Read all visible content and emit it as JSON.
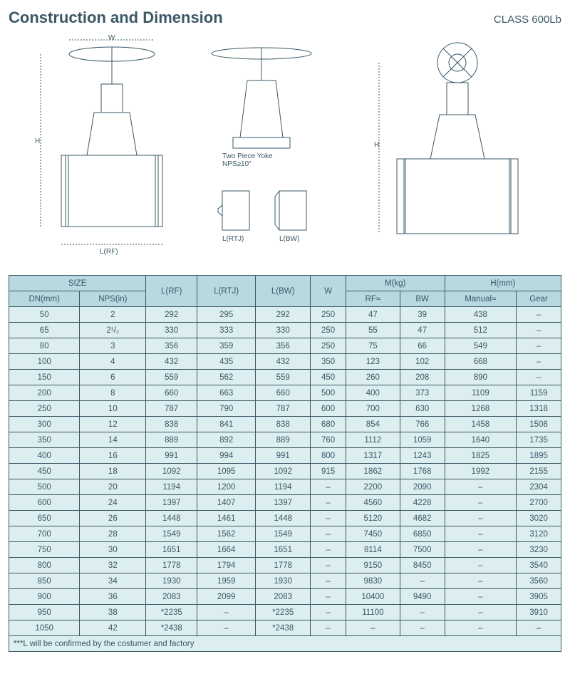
{
  "header": {
    "title": "Construction and Dimension",
    "class_label": "CLASS 600Lb"
  },
  "diagram": {
    "yoke_label": "Two Piece Yoke\nNPS≥10\"",
    "dim_W": "W",
    "dim_H": "H",
    "dim_LRF": "L(RF)",
    "dim_LRTJ": "L(RTJ)",
    "dim_LBW": "L(BW)"
  },
  "table": {
    "header_bg": "#b9d9e0",
    "row_bg": "#dceef0",
    "border_color": "#3a5866",
    "text_color": "#3a5866",
    "groups": {
      "size": "SIZE",
      "mkg": "M(kg)",
      "hmm": "H(mm)"
    },
    "columns": {
      "dn": "DN(mm)",
      "nps": "NPS(in)",
      "lrf": "L(RF)",
      "lrtj": "L(RTJ)",
      "lbw": "L(BW)",
      "w": "W",
      "rf": "RF≈",
      "bw": "BW",
      "manual": "Manual≈",
      "gear": "Gear"
    },
    "rows": [
      [
        "50",
        "2",
        "292",
        "295",
        "292",
        "250",
        "47",
        "39",
        "438",
        "–"
      ],
      [
        "65",
        "2¹/₂",
        "330",
        "333",
        "330",
        "250",
        "55",
        "47",
        "512",
        "–"
      ],
      [
        "80",
        "3",
        "356",
        "359",
        "356",
        "250",
        "75",
        "66",
        "549",
        "–"
      ],
      [
        "100",
        "4",
        "432",
        "435",
        "432",
        "350",
        "123",
        "102",
        "668",
        "–"
      ],
      [
        "150",
        "6",
        "559",
        "562",
        "559",
        "450",
        "260",
        "208",
        "890",
        "–"
      ],
      [
        "200",
        "8",
        "660",
        "663",
        "660",
        "500",
        "400",
        "373",
        "1109",
        "1159"
      ],
      [
        "250",
        "10",
        "787",
        "790",
        "787",
        "600",
        "700",
        "630",
        "1268",
        "1318"
      ],
      [
        "300",
        "12",
        "838",
        "841",
        "838",
        "680",
        "854",
        "766",
        "1458",
        "1508"
      ],
      [
        "350",
        "14",
        "889",
        "892",
        "889",
        "760",
        "1112",
        "1059",
        "1640",
        "1735"
      ],
      [
        "400",
        "16",
        "991",
        "994",
        "991",
        "800",
        "1317",
        "1243",
        "1825",
        "1895"
      ],
      [
        "450",
        "18",
        "1092",
        "1095",
        "1092",
        "915",
        "1862",
        "1768",
        "1992",
        "2155"
      ],
      [
        "500",
        "20",
        "1194",
        "1200",
        "1194",
        "–",
        "2200",
        "2090",
        "–",
        "2304"
      ],
      [
        "600",
        "24",
        "1397",
        "1407",
        "1397",
        "–",
        "4560",
        "4228",
        "–",
        "2700"
      ],
      [
        "650",
        "26",
        "1448",
        "1461",
        "1448",
        "–",
        "5120",
        "4682",
        "–",
        "3020"
      ],
      [
        "700",
        "28",
        "1549",
        "1562",
        "1549",
        "–",
        "7450",
        "6850",
        "–",
        "3120"
      ],
      [
        "750",
        "30",
        "1651",
        "1664",
        "1651",
        "–",
        "8114",
        "7500",
        "–",
        "3230"
      ],
      [
        "800",
        "32",
        "1778",
        "1794",
        "1778",
        "–",
        "9150",
        "8450",
        "–",
        "3540"
      ],
      [
        "850",
        "34",
        "1930",
        "1959",
        "1930",
        "–",
        "9830",
        "–",
        "–",
        "3560"
      ],
      [
        "900",
        "36",
        "2083",
        "2099",
        "2083",
        "–",
        "10400",
        "9490",
        "–",
        "3905"
      ],
      [
        "950",
        "38",
        "*2235",
        "–",
        "*2235",
        "–",
        "11100",
        "–",
        "–",
        "3910"
      ],
      [
        "1050",
        "42",
        "*2438",
        "–",
        "*2438",
        "–",
        "–",
        "–",
        "–",
        "–"
      ]
    ],
    "footnote": "***L will be confirmed by the costumer and factory"
  }
}
